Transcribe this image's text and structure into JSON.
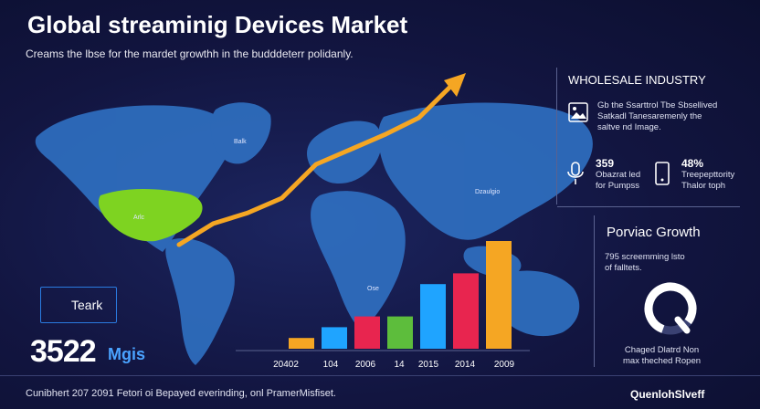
{
  "header": {
    "title": "Global streaminig Devices Market",
    "subtitle": "Creams the lbse for the mardet growthh in the budddeterr polidanly."
  },
  "map_labels": {
    "na": "Arlc",
    "eu": "Balk",
    "as": "Dzaulgio",
    "au": "Ose"
  },
  "left_callout": {
    "label": "Teark",
    "big_number": "3522",
    "unit": "Mgis"
  },
  "side_panel": {
    "heading1": "WHOLESALE INDUSTRY",
    "desc1": "Gb the Ssarttrol Tbe Sbsellived\nSatkadl Tanesaremenly the\nsaltve nd Image.",
    "stat1_value": "359",
    "stat1_text": "Obazrat led\nfor Pumpss",
    "stat2_value": "48%",
    "stat2_text": "Treepepttority\nThalor toph",
    "heading2": "Porviac Growth",
    "desc2": "795 screemming lsto\nof falltets.",
    "ring_caption": "Chaged Dlatrd Non\nmax theched Ropen"
  },
  "colors": {
    "background": "#0f1238",
    "map": "#2f6fc0",
    "highlight_region": "#7ed321",
    "trend_arrow": "#f5a623",
    "accent_blue": "#4aa3ff"
  },
  "chart_data": {
    "type": "bar",
    "categories": [
      "20402",
      "104",
      "2006",
      "14",
      "2015",
      "2014",
      "2009"
    ],
    "series": [
      {
        "values": [
          1,
          2,
          3,
          3,
          6,
          7,
          10
        ]
      }
    ],
    "bar_colors": [
      "#f5a623",
      "#1fa4ff",
      "#e8254f",
      "#5dbd3c",
      "#1fa4ff",
      "#e8254f",
      "#f5a623"
    ],
    "trend_line": [
      1,
      2,
      2.5,
      3.2,
      4.8,
      5.5,
      6.2,
      7,
      8.6
    ],
    "title": "",
    "xlabel": "",
    "ylabel": "",
    "ylim": [
      0,
      10
    ],
    "grid": false
  },
  "footer": {
    "text": "Cunibhert 207 2091 Fetori oi Bepayed everinding, onl PramerMisfiset.",
    "brand": "QuenlohSlveff"
  }
}
